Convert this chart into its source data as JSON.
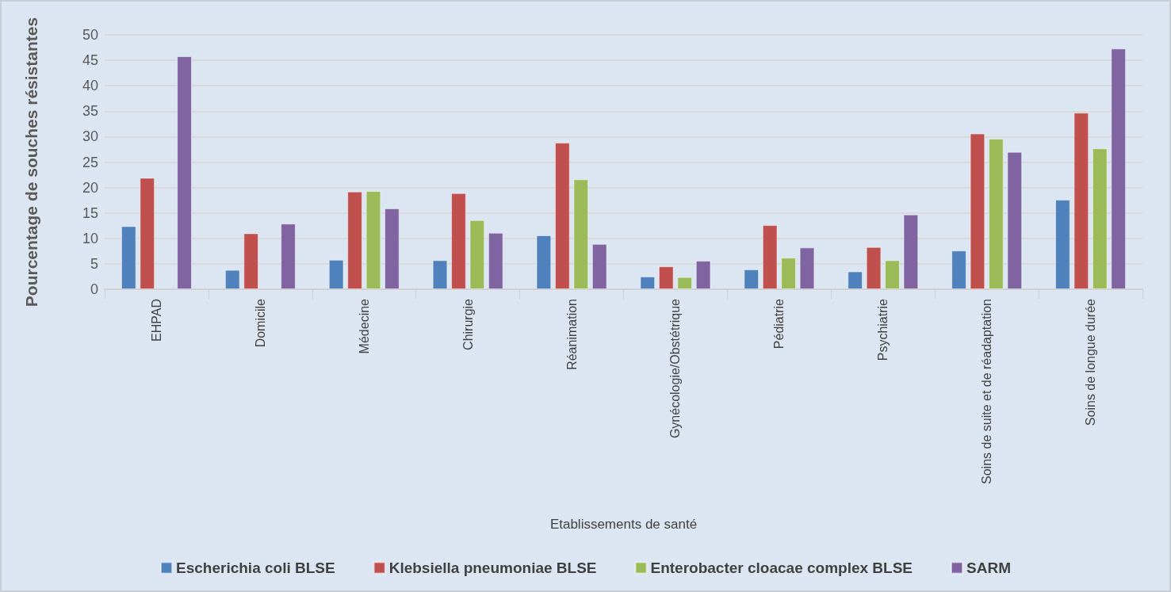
{
  "chart_data": {
    "type": "bar",
    "ylabel": "Pourcentage de souches résistantes",
    "xlabel": "Etablissements de santé",
    "categories": [
      "EHPAD",
      "Domicile",
      "Médecine",
      "Chirurgie",
      "Réanimation",
      "Gynécologie/Obstétrique",
      "Pédiatrie",
      "Psychiatrie",
      "Soins de suite et de réadaptation",
      "Soins de longue durée"
    ],
    "series": [
      {
        "name": "Escherichia coli BLSE",
        "color": "#4f81bd",
        "values": [
          12.4,
          3.8,
          5.8,
          5.7,
          10.6,
          2.5,
          3.9,
          3.5,
          7.6,
          17.6
        ]
      },
      {
        "name": "Klebsiella pneumoniae BLSE",
        "color": "#c0504d",
        "values": [
          21.9,
          11.0,
          19.2,
          18.9,
          28.8,
          4.5,
          12.6,
          8.3,
          30.6,
          34.7
        ]
      },
      {
        "name": "Enterobacter cloacae complex BLSE",
        "color": "#9bbb59",
        "values": [
          null,
          null,
          19.3,
          13.6,
          21.6,
          2.4,
          6.2,
          5.7,
          29.6,
          27.7
        ]
      },
      {
        "name": "SARM",
        "color": "#8064a2",
        "values": [
          45.8,
          12.9,
          15.9,
          11.1,
          8.9,
          5.6,
          8.2,
          14.7,
          27.0,
          47.3
        ]
      }
    ],
    "ylim": [
      0,
      50
    ],
    "yticks": [
      0,
      5,
      10,
      15,
      20,
      25,
      30,
      35,
      40,
      45,
      50
    ],
    "grid": "y",
    "legend": "bottom"
  }
}
